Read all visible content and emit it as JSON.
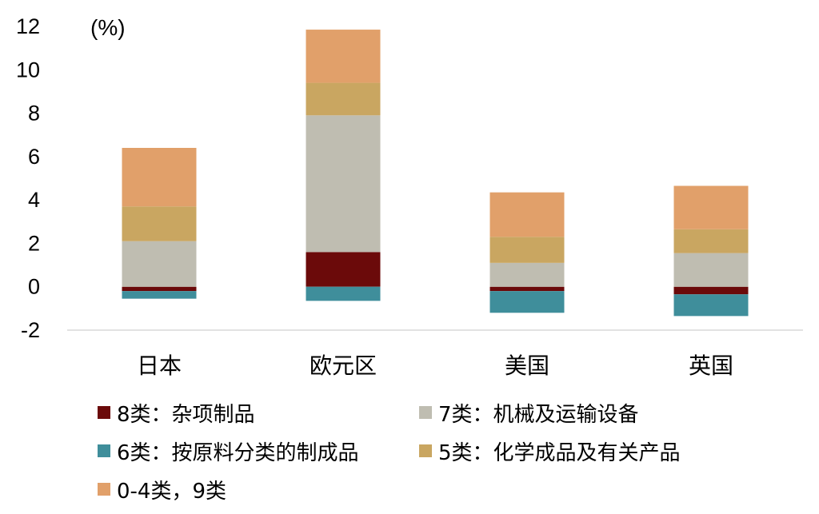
{
  "chart_data": {
    "type": "bar",
    "stacked": true,
    "unit_label": "(%)",
    "categories": [
      "日本",
      "欧元区",
      "美国",
      "英国"
    ],
    "ylim": [
      -2,
      12
    ],
    "yticks": [
      -2,
      0,
      2,
      4,
      6,
      8,
      10,
      12
    ],
    "grid": false,
    "legend_position": "bottom",
    "series": [
      {
        "name": "8类：杂项制品",
        "color": "#6B0A0A",
        "values": [
          -0.2,
          1.6,
          -0.2,
          -0.35
        ]
      },
      {
        "name": "7类：机械及运输设备",
        "color": "#BFBDB1",
        "values": [
          2.1,
          6.3,
          1.1,
          1.55
        ]
      },
      {
        "name": "6类：按原料分类的制成品",
        "color": "#3F8E9B",
        "values": [
          -0.35,
          -0.65,
          -1.0,
          -1.0
        ]
      },
      {
        "name": "5类：化学成品及有关产品",
        "color": "#C9A661",
        "values": [
          1.6,
          1.5,
          1.2,
          1.1
        ]
      },
      {
        "name": "0-4类，9类",
        "color": "#E1A06A",
        "values": [
          2.7,
          2.45,
          2.05,
          2.0
        ]
      }
    ]
  }
}
